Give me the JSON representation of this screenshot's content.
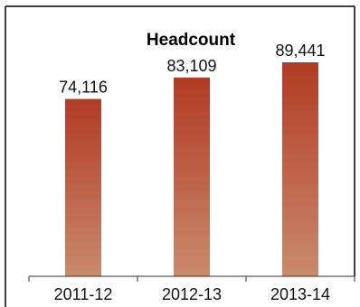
{
  "chart_data": {
    "type": "bar",
    "title": "Headcount",
    "categories": [
      "2011-12",
      "2012-13",
      "2013-14"
    ],
    "values": [
      74116,
      83109,
      89441
    ],
    "value_labels": [
      "74,116",
      "83,109",
      "89,441"
    ],
    "ylim": [
      0,
      100000
    ],
    "grid": false,
    "legend": "none",
    "colors": {
      "bar_top": "#b23b24",
      "bar_bottom": "#c98a6c",
      "frame": "#000000",
      "axis": "#333333"
    }
  }
}
